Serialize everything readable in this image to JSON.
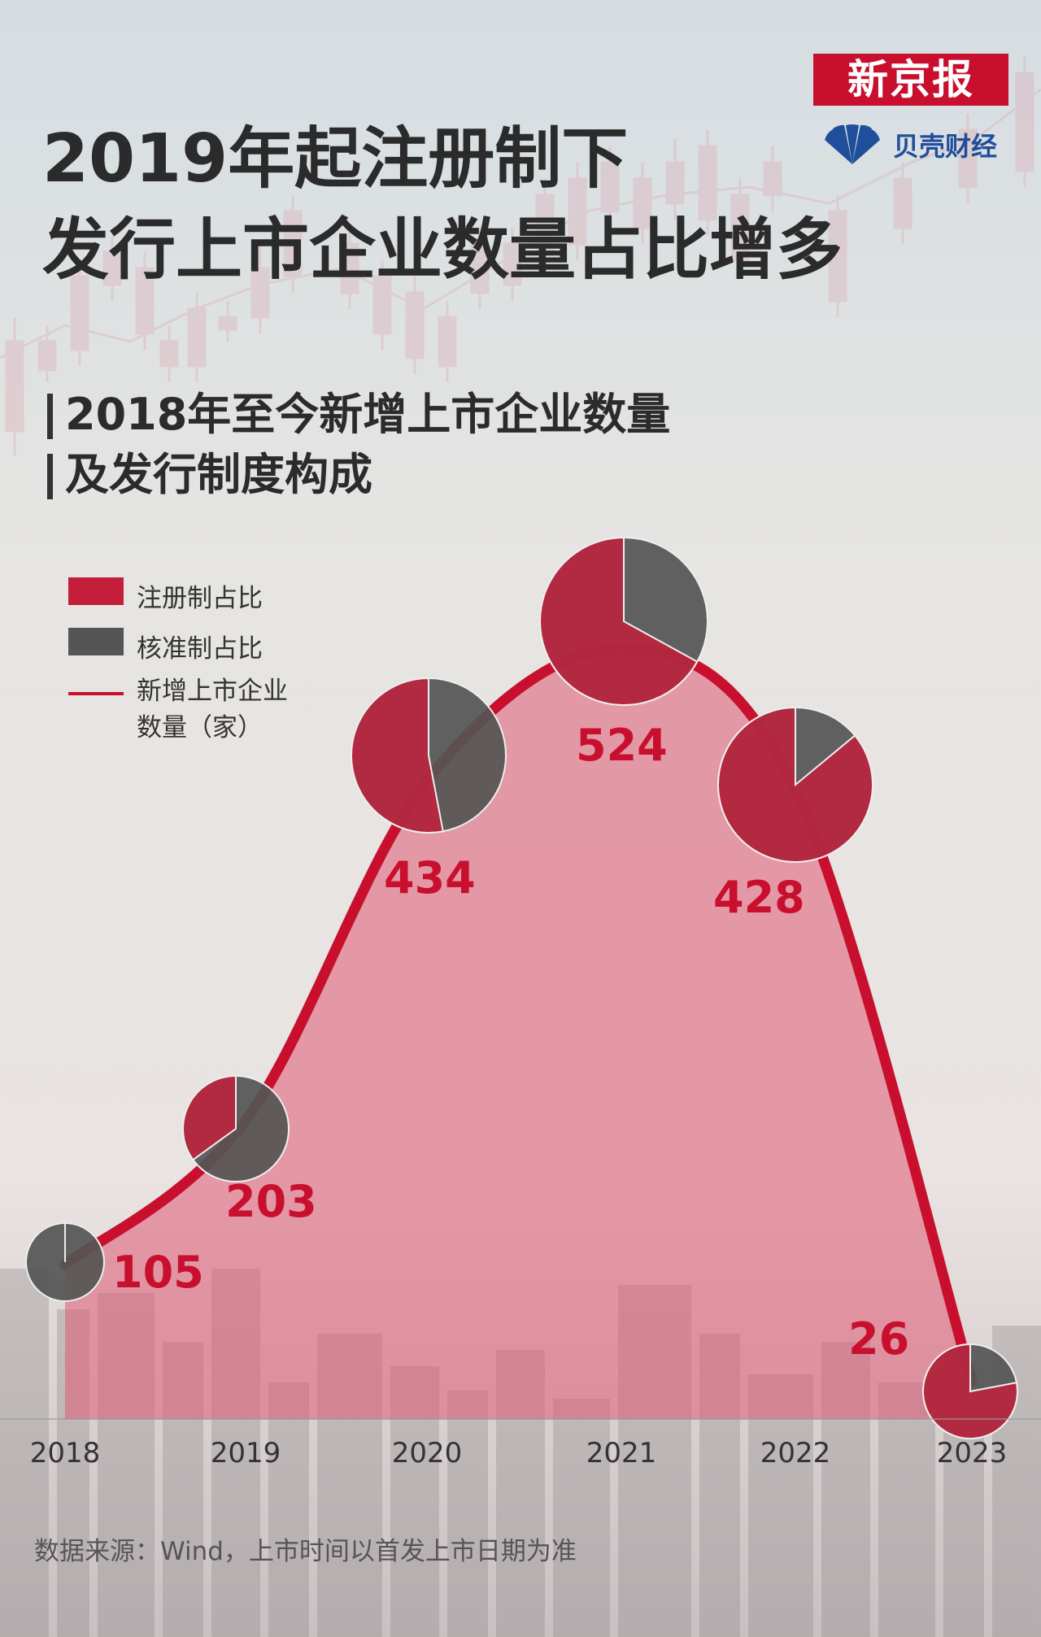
{
  "brand": {
    "name": "新京报",
    "sub": "贝壳财经"
  },
  "title": {
    "line1": "2019年起注册制下",
    "line2": "发行上市企业数量占比增多"
  },
  "subtitle": {
    "line1": "2018年至今新增上市企业数量",
    "line2": "及发行制度构成"
  },
  "legend": {
    "registration": "注册制占比",
    "approval": "核准制占比",
    "line1": "新增上市企业",
    "line2": "数量（家）"
  },
  "source": "数据来源：Wind，上市时间以首发上市日期为准",
  "colors": {
    "registration": "#c41e3a",
    "approval": "#555555",
    "line": "#c8102e",
    "label": "#c8102e",
    "area": "#e05a74"
  },
  "chart_data": {
    "type": "line",
    "categories": [
      "2018",
      "2019",
      "2020",
      "2021",
      "2022",
      "2023"
    ],
    "series": [
      {
        "name": "新增上市企业数量（家）",
        "values": [
          105,
          203,
          434,
          524,
          428,
          26
        ]
      }
    ],
    "registration_share": [
      0,
      0.35,
      0.53,
      0.67,
      0.86,
      0.78
    ],
    "approval_share": [
      1,
      0.65,
      0.47,
      0.33,
      0.14,
      0.22
    ],
    "ylim": [
      0,
      600
    ]
  }
}
